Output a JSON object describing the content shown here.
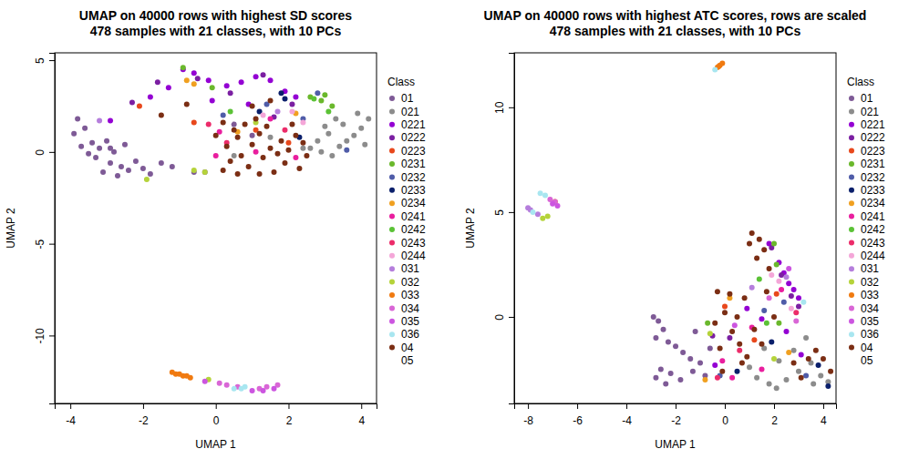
{
  "chart_data": [
    {
      "type": "scatter",
      "title": "UMAP on 40000 rows with highest SD scores\n478 samples with 21 classes, with 10 PCs",
      "x_label": "UMAP 1",
      "y_label": "UMAP 2",
      "legend_title": "Class",
      "legend": "right",
      "xlim": [
        -4.43,
        4.42
      ],
      "ylim": [
        -13.7,
        5.4
      ],
      "xticks": [
        -4,
        -2,
        0,
        2,
        4
      ],
      "yticks": [
        -10,
        -5,
        0,
        5
      ],
      "series": [
        {
          "name": "01",
          "color": "#7E5A96",
          "x": [
            -3.8,
            -3.6,
            -3.9,
            -3.4,
            -3.7,
            -3.2,
            -3.0,
            -2.8,
            -3.3,
            -2.9,
            -2.6,
            -3.1,
            -2.4,
            -2.2,
            -2.0,
            -1.8,
            -2.7,
            -1.5,
            -1.2,
            -3.5,
            -2.5,
            -0.6,
            -0.3,
            0.5,
            1.0,
            -2.9
          ],
          "values": [
            1.8,
            1.3,
            1.0,
            0.5,
            0.3,
            0.2,
            0.6,
            0.0,
            -0.3,
            -0.6,
            -0.8,
            -1.1,
            -1.0,
            -0.5,
            -0.9,
            -1.2,
            -1.3,
            -0.6,
            -0.8,
            -0.1,
            0.4,
            -1.1,
            -1.1,
            1.5,
            0.9,
            0.2
          ]
        },
        {
          "name": "021",
          "color": "#8C8C8C",
          "x": [
            2.6,
            2.9,
            3.2,
            3.4,
            3.6,
            3.8,
            4.0,
            4.2,
            3.9,
            3.5,
            3.1,
            2.8,
            3.3,
            2.4,
            4.1,
            1.5,
            0.5,
            3.0
          ],
          "values": [
            0.2,
            0.0,
            -0.2,
            0.3,
            0.6,
            0.9,
            1.3,
            1.8,
            2.1,
            1.5,
            1.0,
            0.6,
            1.8,
            0.2,
            0.4,
            0.8,
            -0.2,
            1.4
          ]
        },
        {
          "name": "0221",
          "color": "#9400D3",
          "x": [
            -1.8,
            -1.3,
            -0.9,
            -0.6,
            -0.2,
            0.3,
            0.7,
            1.1,
            1.5,
            1.9,
            2.2,
            -0.1,
            0.9,
            -2.9
          ],
          "values": [
            3.0,
            3.5,
            4.5,
            4.3,
            3.9,
            3.6,
            3.8,
            4.1,
            3.9,
            3.3,
            3.0,
            2.8,
            2.6,
            1.7
          ]
        },
        {
          "name": "0222",
          "color": "#7B1FA2",
          "x": [
            -2.3,
            -1.6,
            -0.5,
            0.4,
            1.3,
            2.1,
            1.6
          ],
          "values": [
            2.7,
            3.8,
            4.0,
            3.2,
            4.2,
            2.6,
            1.9
          ]
        },
        {
          "name": "0223",
          "color": "#E8481C",
          "x": [
            -2.1,
            -0.6,
            1.1,
            2.0
          ],
          "values": [
            2.5,
            1.6,
            1.2,
            0.5
          ]
        },
        {
          "name": "0231",
          "color": "#6AB82C",
          "x": [
            2.6,
            2.9,
            3.2,
            3.0,
            -0.9,
            -0.1
          ],
          "values": [
            3.0,
            2.8,
            2.5,
            3.1,
            4.6,
            3.5
          ]
        },
        {
          "name": "0232",
          "color": "#4F5CA8",
          "x": [
            0.2,
            1.4,
            2.4,
            3.6,
            2.8
          ],
          "values": [
            2.0,
            2.6,
            1.8,
            0.1,
            3.2
          ]
        },
        {
          "name": "0233",
          "color": "#0A1F6B",
          "x": [
            1.8,
            1.9,
            2.3,
            1.2
          ],
          "values": [
            3.2,
            2.9,
            0.8,
            2.2
          ]
        },
        {
          "name": "0234",
          "color": "#F0A020",
          "x": [
            -0.6,
            0.6,
            2.2,
            -0.8
          ],
          "values": [
            3.7,
            1.1,
            2.1,
            3.9
          ]
        },
        {
          "name": "0241",
          "color": "#E91E9E",
          "x": [
            0.0,
            1.1,
            1.5,
            2.2,
            0.1
          ],
          "values": [
            -0.2,
            0.0,
            1.8,
            -0.3,
            1.1
          ]
        },
        {
          "name": "0242",
          "color": "#5BC236",
          "x": [
            2.7,
            3.1,
            0.4
          ],
          "values": [
            2.9,
            2.2,
            2.2
          ]
        },
        {
          "name": "0243",
          "color": "#EC2C6A",
          "x": [
            0.3,
            1.9,
            -0.2
          ],
          "values": [
            0.5,
            1.2,
            1.5
          ]
        },
        {
          "name": "0244",
          "color": "#F4A6D8",
          "x": [
            2.1,
            2.4,
            1.3
          ],
          "values": [
            2.2,
            1.6,
            2.0
          ]
        },
        {
          "name": "031",
          "color": "#B57EDC",
          "x": [
            1.7,
            -3.2
          ],
          "values": [
            2.2,
            1.7
          ]
        },
        {
          "name": "032",
          "color": "#B5D33A",
          "x": [
            -1.9,
            -0.3,
            -0.6,
            1.1,
            -0.2
          ],
          "values": [
            -1.5,
            -1.1,
            -1.0,
            1.6,
            -12.4
          ]
        },
        {
          "name": "033",
          "color": "#F07A10",
          "x": [
            -1.2,
            -1.1,
            -1.0,
            -0.9,
            -0.8,
            -0.7
          ],
          "values": [
            -12.0,
            -12.1,
            -12.1,
            -12.2,
            -12.2,
            -12.3
          ]
        },
        {
          "name": "034",
          "color": "#D966D6",
          "x": [
            0.3,
            0.6,
            1.2,
            1.4,
            1.7,
            0.1
          ],
          "values": [
            -12.7,
            -12.8,
            -12.9,
            -12.8,
            -12.7,
            -12.6
          ]
        },
        {
          "name": "035",
          "color": "#CC55E0",
          "x": [
            1.0,
            1.3,
            1.6,
            -0.3
          ],
          "values": [
            -13.0,
            -13.0,
            -12.9,
            -12.5
          ]
        },
        {
          "name": "036",
          "color": "#A8E6F0",
          "x": [
            0.5,
            0.7,
            0.8
          ],
          "values": [
            -12.9,
            -12.9,
            -12.8
          ]
        },
        {
          "name": "04",
          "color": "#7B2E14",
          "x": [
            0.2,
            0.4,
            0.3,
            0.6,
            0.7,
            0.9,
            1.0,
            1.2,
            1.3,
            1.5,
            1.6,
            1.8,
            1.9,
            2.0,
            2.2,
            2.3,
            2.5,
            0.8,
            1.1,
            1.4,
            0.5,
            2.1,
            0.0,
            1.7,
            1.2,
            0.6,
            2.4,
            1.0,
            1.5,
            0.2,
            -1.5,
            -0.8
          ],
          "values": [
            -1.0,
            -0.5,
            0.3,
            0.8,
            -0.2,
            -0.8,
            0.4,
            1.0,
            -0.3,
            0.2,
            -1.1,
            0.6,
            -0.6,
            0.1,
            0.9,
            -0.9,
            -0.2,
            1.5,
            1.8,
            1.4,
            1.2,
            1.5,
            0.9,
            -0.1,
            -1.2,
            -1.2,
            0.5,
            2.5,
            2.8,
            1.6,
            2.0,
            2.6
          ]
        },
        {
          "name": "05",
          "color": "#FFFFFF",
          "x": [],
          "values": []
        }
      ]
    },
    {
      "type": "scatter",
      "title": "UMAP on 40000 rows with highest ATC scores, rows are scaled\n478 samples with 21 classes, with 10 PCs",
      "x_label": "UMAP 1",
      "y_label": "UMAP 2",
      "legend_title": "Class",
      "legend": "right",
      "xlim": [
        -8.56,
        4.52
      ],
      "ylim": [
        -4.13,
        12.6
      ],
      "xticks": [
        -8,
        -6,
        -4,
        -2,
        0,
        2,
        4
      ],
      "yticks": [
        0,
        5,
        10
      ],
      "series": [
        {
          "name": "01",
          "color": "#7E5A96",
          "x": [
            -2.9,
            -2.7,
            -2.5,
            -2.8,
            -2.3,
            -2.0,
            -1.7,
            -1.4,
            -2.6,
            -2.8,
            -2.2,
            -1.8,
            -1.3,
            -1.0,
            -0.8,
            -1.2,
            -0.6,
            -2.4
          ],
          "values": [
            0.0,
            -0.2,
            -0.6,
            -1.0,
            -1.2,
            -1.4,
            -1.7,
            -2.0,
            -2.5,
            -2.9,
            -2.7,
            -3.0,
            -2.6,
            -2.2,
            -2.8,
            -0.7,
            -1.5,
            -3.2
          ]
        },
        {
          "name": "021",
          "color": "#8C8C8C",
          "x": [
            1.3,
            1.8,
            2.1,
            2.5,
            3.0,
            3.5,
            3.9,
            4.2,
            2.8,
            3.3,
            1.0,
            2.2,
            3.6,
            1.6
          ],
          "values": [
            -2.9,
            -3.2,
            -3.4,
            -3.0,
            -2.6,
            -2.2,
            -2.8,
            -3.1,
            -1.6,
            -1.0,
            -2.4,
            -2.1,
            -3.2,
            -1.5
          ]
        },
        {
          "name": "0221",
          "color": "#9400D3",
          "x": [
            1.8,
            2.2,
            2.4,
            2.6,
            2.8,
            3.0,
            2.5,
            0.9,
            -0.4,
            1.5,
            3.1
          ],
          "values": [
            3.5,
            2.6,
            2.1,
            1.6,
            1.3,
            0.9,
            -0.7,
            0.4,
            -2.3,
            -0.1,
            -1.8
          ]
        },
        {
          "name": "0222",
          "color": "#7B1FA2",
          "x": [
            1.9,
            2.3,
            2.7,
            0.2,
            -0.5,
            3.0
          ],
          "values": [
            3.3,
            2.0,
            1.0,
            -1.0,
            -0.9,
            0.5
          ]
        },
        {
          "name": "0223",
          "color": "#E8481C",
          "x": [
            0.0,
            1.2,
            2.1
          ],
          "values": [
            0.5,
            -1.1,
            1.1
          ]
        },
        {
          "name": "0231",
          "color": "#6AB82C",
          "x": [
            2.0,
            2.1,
            -0.7,
            2.2
          ],
          "values": [
            3.5,
            2.5,
            -0.3,
            -0.3
          ]
        },
        {
          "name": "0232",
          "color": "#4F5CA8",
          "x": [
            2.4,
            1.6,
            -0.2,
            3.3
          ],
          "values": [
            0.7,
            0.3,
            -2.8,
            -2.8
          ]
        },
        {
          "name": "0233",
          "color": "#0A1F6B",
          "x": [
            4.2,
            1.9,
            0.5,
            3.8
          ],
          "values": [
            -3.3,
            -1.2,
            -2.6,
            -2.3
          ]
        },
        {
          "name": "0234",
          "color": "#F0A020",
          "x": [
            2.6,
            0.2,
            -0.8
          ],
          "values": [
            -1.7,
            0.9,
            -3.0
          ]
        },
        {
          "name": "0241",
          "color": "#E91E9E",
          "x": [
            2.3,
            -0.1,
            0.3,
            1.5,
            1.1
          ],
          "values": [
            1.3,
            -2.1,
            -2.9,
            -2.5,
            -0.5
          ]
        },
        {
          "name": "0242",
          "color": "#5BC236",
          "x": [
            1.4,
            1.7
          ],
          "values": [
            1.8,
            -0.3
          ]
        },
        {
          "name": "0243",
          "color": "#EC2C6A",
          "x": [
            -0.3,
            0.6,
            2.9
          ],
          "values": [
            -2.9,
            -1.6,
            0.2
          ]
        },
        {
          "name": "0244",
          "color": "#F4A6D8",
          "x": [
            2.2,
            2.7,
            1.9
          ],
          "values": [
            1.7,
            0.4,
            2.0
          ]
        },
        {
          "name": "031",
          "color": "#B57EDC",
          "x": [
            -8.0,
            -7.9,
            -7.6,
            1.1,
            2.5
          ],
          "values": [
            5.2,
            5.1,
            4.9,
            1.4,
            1.9
          ]
        },
        {
          "name": "032",
          "color": "#B5D33A",
          "x": [
            -7.4,
            -7.2,
            -0.6,
            2.0
          ],
          "values": [
            4.7,
            4.8,
            -0.8,
            -2.0
          ]
        },
        {
          "name": "033",
          "color": "#F07A10",
          "x": [
            -0.3,
            -0.2,
            -0.1,
            -0.25,
            -6.9
          ],
          "values": [
            11.9,
            12.0,
            12.1,
            11.95,
            5.5
          ]
        },
        {
          "name": "034",
          "color": "#D966D6",
          "x": [
            -7.1,
            -6.9,
            1.8,
            2.9
          ],
          "values": [
            5.6,
            5.5,
            0.9,
            -0.2
          ]
        },
        {
          "name": "035",
          "color": "#CC55E0",
          "x": [
            -6.8,
            -7.0,
            2.6,
            0.4
          ],
          "values": [
            5.3,
            5.4,
            2.3,
            -0.4
          ]
        },
        {
          "name": "036",
          "color": "#A8E6F0",
          "x": [
            -0.4,
            -7.5,
            -7.3,
            -7.8,
            3.2
          ],
          "values": [
            11.8,
            5.9,
            5.8,
            5.0,
            0.7
          ]
        },
        {
          "name": "04",
          "color": "#7B2E14",
          "x": [
            1.1,
            1.4,
            1.6,
            1.3,
            1.8,
            1.0,
            0.2,
            0.0,
            -0.3,
            0.5,
            0.3,
            -0.2,
            0.6,
            0.9,
            1.2,
            1.5,
            -0.4,
            2.8,
            3.4,
            3.7,
            4.0,
            4.3,
            3.1,
            0.7,
            -0.1,
            0.8,
            1.7,
            2.0
          ],
          "values": [
            4.0,
            3.7,
            3.2,
            2.8,
            2.3,
            3.5,
            1.1,
            0.2,
            1.2,
            0.0,
            -0.7,
            -1.5,
            -1.3,
            -1.9,
            -0.6,
            -1.3,
            -0.3,
            -2.2,
            -2.0,
            -1.6,
            -2.0,
            -2.6,
            -2.9,
            -2.2,
            -2.6,
            0.9,
            1.2,
            0.0
          ]
        },
        {
          "name": "05",
          "color": "#FFFFFF",
          "x": [],
          "values": []
        }
      ]
    }
  ]
}
